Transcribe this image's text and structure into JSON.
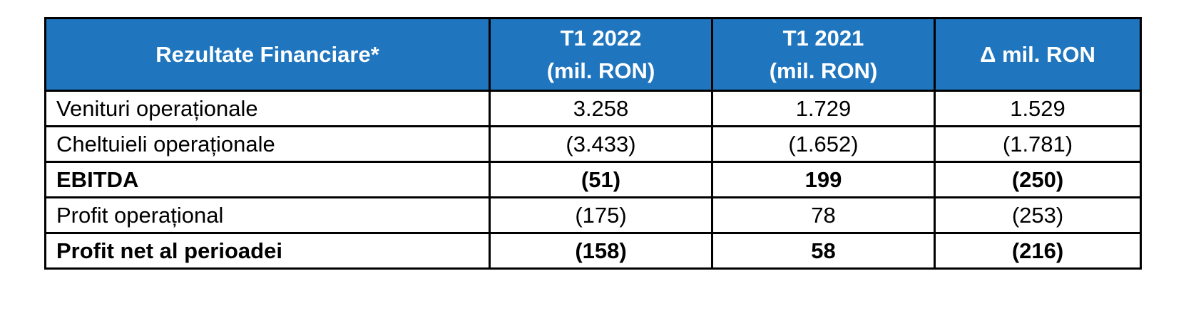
{
  "table": {
    "headers": [
      {
        "lines": [
          "Rezultate Financiare*"
        ]
      },
      {
        "lines": [
          "T1 2022",
          "(mil. RON)"
        ]
      },
      {
        "lines": [
          "T1 2021",
          "(mil. RON)"
        ]
      },
      {
        "lines": [
          "Δ mil. RON"
        ]
      }
    ],
    "rows": [
      {
        "label": "Venituri operaționale",
        "t1_2022": "3.258",
        "t1_2021": "1.729",
        "delta": "1.529",
        "bold": false
      },
      {
        "label": "Cheltuieli operaționale",
        "t1_2022": "(3.433)",
        "t1_2021": "(1.652)",
        "delta": "(1.781)",
        "bold": false
      },
      {
        "label": "EBITDA",
        "t1_2022": "(51)",
        "t1_2021": "199",
        "delta": "(250)",
        "bold": true
      },
      {
        "label": "Profit operațional",
        "t1_2022": "(175)",
        "t1_2021": "78",
        "delta": "(253)",
        "bold": false
      },
      {
        "label": "Profit net al perioadei",
        "t1_2022": "(158)",
        "t1_2021": "58",
        "delta": "(216)",
        "bold": true
      }
    ],
    "colors": {
      "header_background": "#1f75be",
      "header_text": "#ffffff",
      "border": "#000000"
    }
  }
}
